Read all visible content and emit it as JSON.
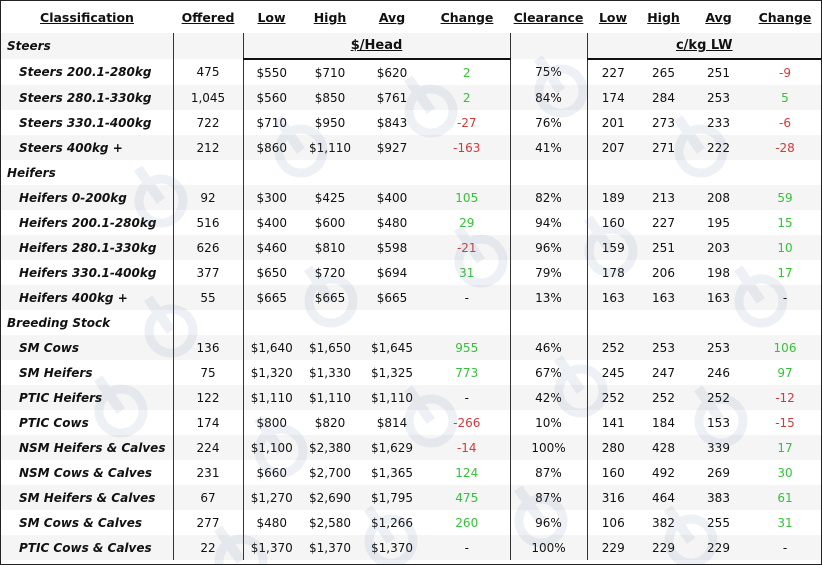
{
  "headers": {
    "classification": "Classification",
    "offered": "Offered",
    "low": "Low",
    "high": "High",
    "avg": "Avg",
    "change": "Change",
    "clearance": "Clearance",
    "low2": "Low",
    "high2": "High",
    "avg2": "Avg",
    "change2": "Change"
  },
  "units": {
    "head": "$/Head",
    "lw": "c/kg LW"
  },
  "colors": {
    "positive": "#36c13a",
    "negative": "#d23a3a",
    "text": "#111111"
  },
  "sections": [
    {
      "title": "Steers",
      "rows": [
        {
          "name": "Steers 200.1-280kg",
          "offered": "475",
          "low": "$550",
          "high": "$710",
          "avg": "$620",
          "change": "2",
          "trend": "pos",
          "clearance": "75%",
          "low2": "227",
          "high2": "265",
          "avg2": "251",
          "change2": "-9",
          "trend2": "neg"
        },
        {
          "name": "Steers 280.1-330kg",
          "offered": "1,045",
          "low": "$560",
          "high": "$850",
          "avg": "$761",
          "change": "2",
          "trend": "pos",
          "clearance": "84%",
          "low2": "174",
          "high2": "284",
          "avg2": "253",
          "change2": "5",
          "trend2": "pos"
        },
        {
          "name": "Steers 330.1-400kg",
          "offered": "722",
          "low": "$710",
          "high": "$950",
          "avg": "$843",
          "change": "-27",
          "trend": "neg",
          "clearance": "76%",
          "low2": "201",
          "high2": "273",
          "avg2": "233",
          "change2": "-6",
          "trend2": "neg"
        },
        {
          "name": "Steers 400kg +",
          "offered": "212",
          "low": "$860",
          "high": "$1,110",
          "avg": "$927",
          "change": "-163",
          "trend": "neg",
          "clearance": "41%",
          "low2": "207",
          "high2": "271",
          "avg2": "222",
          "change2": "-28",
          "trend2": "neg"
        }
      ]
    },
    {
      "title": "Heifers",
      "rows": [
        {
          "name": "Heifers 0-200kg",
          "offered": "92",
          "low": "$300",
          "high": "$425",
          "avg": "$400",
          "change": "105",
          "trend": "pos",
          "clearance": "82%",
          "low2": "189",
          "high2": "213",
          "avg2": "208",
          "change2": "59",
          "trend2": "pos"
        },
        {
          "name": "Heifers 200.1-280kg",
          "offered": "516",
          "low": "$400",
          "high": "$600",
          "avg": "$480",
          "change": "29",
          "trend": "pos",
          "clearance": "94%",
          "low2": "160",
          "high2": "227",
          "avg2": "195",
          "change2": "15",
          "trend2": "pos"
        },
        {
          "name": "Heifers 280.1-330kg",
          "offered": "626",
          "low": "$460",
          "high": "$810",
          "avg": "$598",
          "change": "-21",
          "trend": "neg",
          "clearance": "96%",
          "low2": "159",
          "high2": "251",
          "avg2": "203",
          "change2": "10",
          "trend2": "pos"
        },
        {
          "name": "Heifers 330.1-400kg",
          "offered": "377",
          "low": "$650",
          "high": "$720",
          "avg": "$694",
          "change": "31",
          "trend": "pos",
          "clearance": "79%",
          "low2": "178",
          "high2": "206",
          "avg2": "198",
          "change2": "17",
          "trend2": "pos"
        },
        {
          "name": "Heifers 400kg +",
          "offered": "55",
          "low": "$665",
          "high": "$665",
          "avg": "$665",
          "change": "-",
          "trend": "neu",
          "clearance": "13%",
          "low2": "163",
          "high2": "163",
          "avg2": "163",
          "change2": "-",
          "trend2": "neu"
        }
      ]
    },
    {
      "title": "Breeding Stock",
      "rows": [
        {
          "name": "SM Cows",
          "offered": "136",
          "low": "$1,640",
          "high": "$1,650",
          "avg": "$1,645",
          "change": "955",
          "trend": "pos",
          "clearance": "46%",
          "low2": "252",
          "high2": "253",
          "avg2": "253",
          "change2": "106",
          "trend2": "pos"
        },
        {
          "name": "SM Heifers",
          "offered": "75",
          "low": "$1,320",
          "high": "$1,330",
          "avg": "$1,325",
          "change": "773",
          "trend": "pos",
          "clearance": "67%",
          "low2": "245",
          "high2": "247",
          "avg2": "246",
          "change2": "97",
          "trend2": "pos"
        },
        {
          "name": "PTIC Heifers",
          "offered": "122",
          "low": "$1,110",
          "high": "$1,110",
          "avg": "$1,110",
          "change": "-",
          "trend": "neu",
          "clearance": "42%",
          "low2": "252",
          "high2": "252",
          "avg2": "252",
          "change2": "-12",
          "trend2": "neg"
        },
        {
          "name": "PTIC Cows",
          "offered": "174",
          "low": "$800",
          "high": "$820",
          "avg": "$814",
          "change": "-266",
          "trend": "neg",
          "clearance": "10%",
          "low2": "141",
          "high2": "184",
          "avg2": "153",
          "change2": "-15",
          "trend2": "neg"
        },
        {
          "name": "NSM Heifers & Calves",
          "offered": "224",
          "low": "$1,100",
          "high": "$2,380",
          "avg": "$1,629",
          "change": "-14",
          "trend": "neg",
          "clearance": "100%",
          "low2": "280",
          "high2": "428",
          "avg2": "339",
          "change2": "17",
          "trend2": "pos"
        },
        {
          "name": "NSM Cows & Calves",
          "offered": "231",
          "low": "$660",
          "high": "$2,700",
          "avg": "$1,365",
          "change": "124",
          "trend": "pos",
          "clearance": "87%",
          "low2": "160",
          "high2": "492",
          "avg2": "269",
          "change2": "30",
          "trend2": "pos"
        },
        {
          "name": "SM Heifers & Calves",
          "offered": "67",
          "low": "$1,270",
          "high": "$2,690",
          "avg": "$1,795",
          "change": "475",
          "trend": "pos",
          "clearance": "87%",
          "low2": "316",
          "high2": "464",
          "avg2": "383",
          "change2": "61",
          "trend2": "pos"
        },
        {
          "name": "SM Cows & Calves",
          "offered": "277",
          "low": "$480",
          "high": "$2,580",
          "avg": "$1,266",
          "change": "260",
          "trend": "pos",
          "clearance": "96%",
          "low2": "106",
          "high2": "382",
          "avg2": "255",
          "change2": "31",
          "trend2": "pos"
        },
        {
          "name": "PTIC Cows & Calves",
          "offered": "22",
          "low": "$1,370",
          "high": "$1,370",
          "avg": "$1,370",
          "change": "-",
          "trend": "neu",
          "clearance": "100%",
          "low2": "229",
          "high2": "229",
          "avg2": "229",
          "change2": "-",
          "trend2": "neu"
        }
      ]
    }
  ]
}
